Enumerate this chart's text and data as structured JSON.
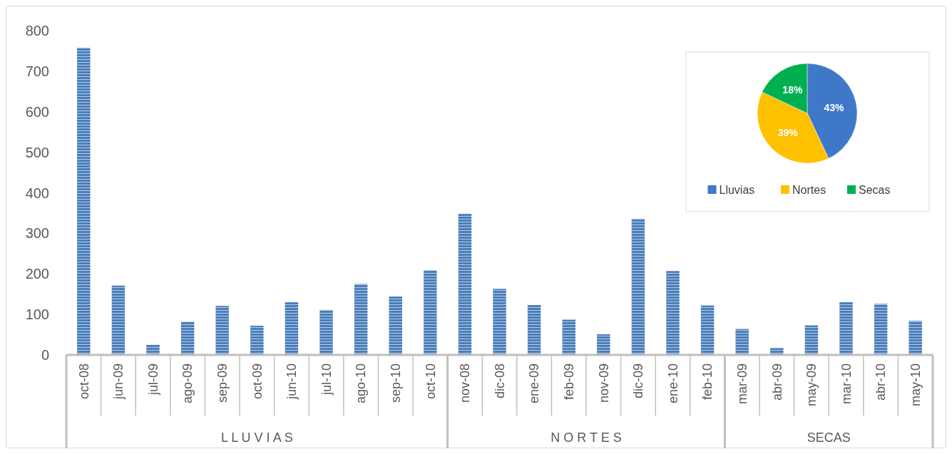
{
  "chart_data": [
    {
      "type": "bar",
      "categories": [
        "oct-08",
        "jun-09",
        "jul-09",
        "ago-09",
        "sep-09",
        "oct-09",
        "jun-10",
        "jul-10",
        "ago-10",
        "sep-10",
        "oct-10",
        "nov-08",
        "dic-08",
        "ene-09",
        "feb-09",
        "nov-09",
        "dic-09",
        "ene-10",
        "feb-10",
        "mar-09",
        "abr-09",
        "may-09",
        "mar-10",
        "abr-10",
        "may-10"
      ],
      "values": [
        758,
        171,
        25,
        82,
        121,
        72,
        130,
        111,
        175,
        144,
        209,
        348,
        163,
        123,
        87,
        51,
        336,
        207,
        122,
        64,
        17,
        73,
        130,
        126,
        84
      ],
      "color": "#4a7ebb",
      "ylim": [
        0,
        800
      ],
      "yticks": [
        0,
        100,
        200,
        300,
        400,
        500,
        600,
        700,
        800
      ],
      "annotations": [
        "L L U V I A S",
        "N O R T E S",
        "SECAS"
      ]
    },
    {
      "type": "pie",
      "categories": [
        "Lluvias",
        "Nortes",
        "Secas"
      ],
      "values": [
        43,
        39,
        18
      ],
      "colors": [
        "#3f78c8",
        "#ffc000",
        "#00b050"
      ],
      "value_labels": [
        "43%",
        "39%",
        "18%"
      ],
      "legend": "bottom"
    }
  ]
}
